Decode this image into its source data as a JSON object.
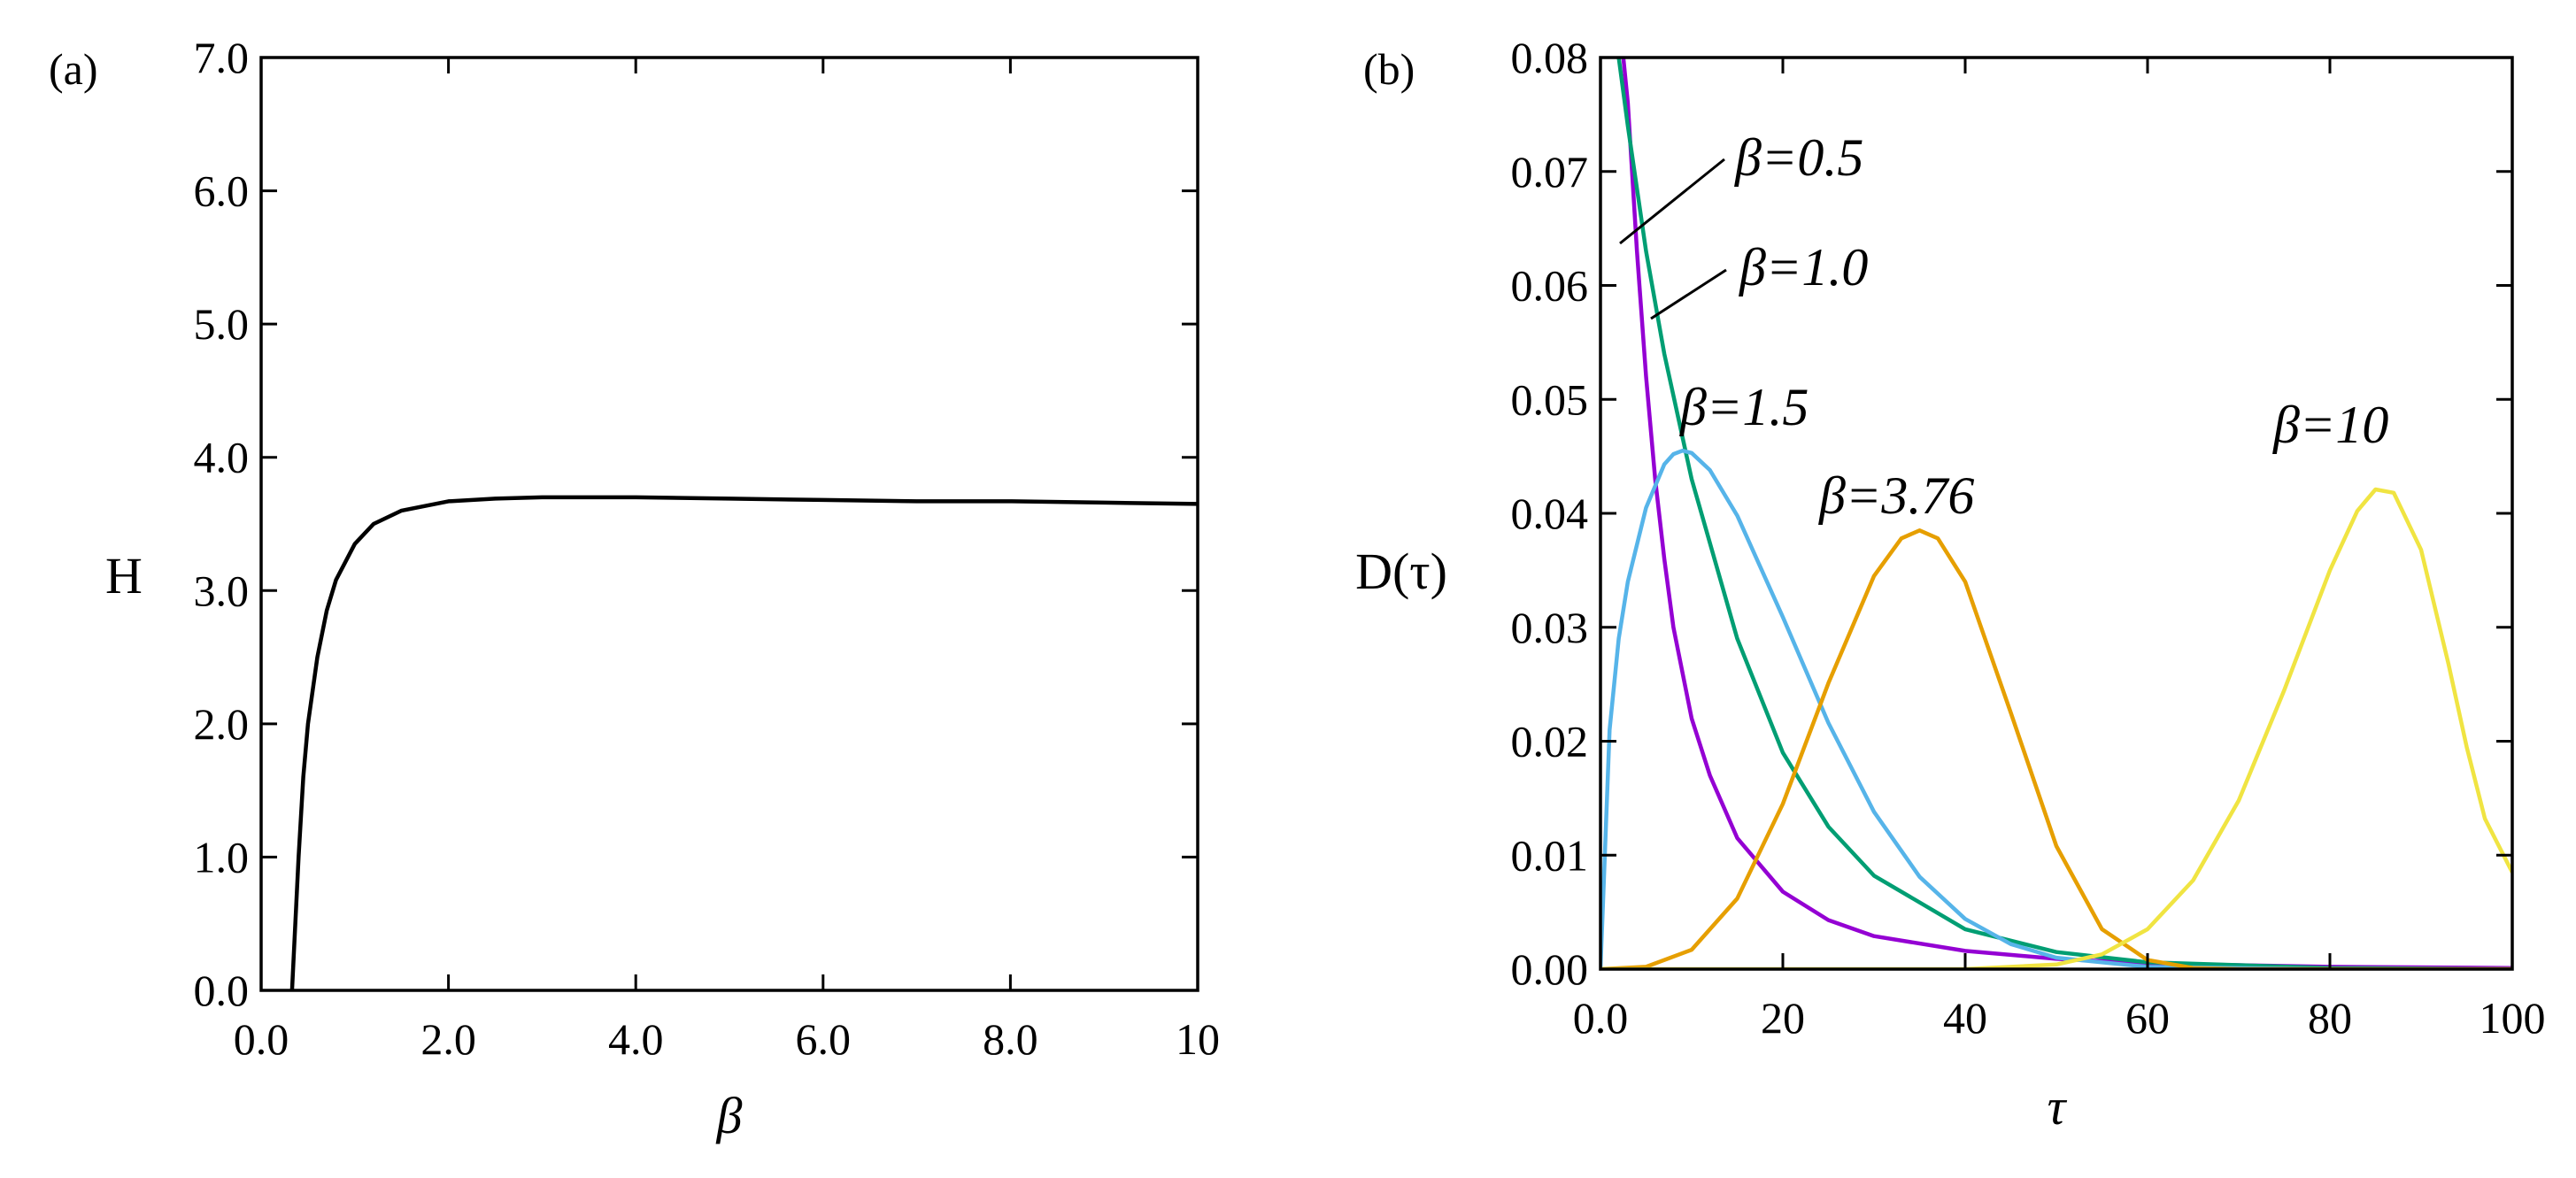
{
  "chart_data": [
    {
      "panel": "(a)",
      "type": "line",
      "xlabel": "β",
      "ylabel": "H",
      "xlim": [
        0,
        10
      ],
      "ylim": [
        0,
        7
      ],
      "x_ticks": [
        "0.0",
        "2.0",
        "4.0",
        "6.0",
        "8.0",
        "10"
      ],
      "y_ticks": [
        "0.0",
        "1.0",
        "2.0",
        "3.0",
        "4.0",
        "5.0",
        "6.0",
        "7.0"
      ],
      "grid": false,
      "series": [
        {
          "color": "#000000",
          "x": [
            0.33,
            0.4,
            0.45,
            0.5,
            0.6,
            0.7,
            0.8,
            1.0,
            1.2,
            1.5,
            2.0,
            2.5,
            3.0,
            3.5,
            4.0,
            5.0,
            6.0,
            7.0,
            8.0,
            9.0,
            10.0
          ],
          "y": [
            0.0,
            1.0,
            1.6,
            2.0,
            2.5,
            2.85,
            3.08,
            3.35,
            3.5,
            3.6,
            3.67,
            3.69,
            3.7,
            3.7,
            3.7,
            3.69,
            3.68,
            3.67,
            3.67,
            3.66,
            3.65
          ]
        }
      ]
    },
    {
      "panel": "(b)",
      "type": "line",
      "xlabel": "τ",
      "ylabel": "D(τ)",
      "xlim": [
        0,
        100
      ],
      "ylim": [
        0,
        0.08
      ],
      "x_ticks": [
        "0.0",
        "20",
        "40",
        "60",
        "80",
        "100"
      ],
      "y_ticks": [
        "0.00",
        "0.01",
        "0.02",
        "0.03",
        "0.04",
        "0.05",
        "0.06",
        "0.07",
        "0.08"
      ],
      "grid": false,
      "series": [
        {
          "label": "β=0.5",
          "color": "#9400D3",
          "x": [
            2.5,
            3,
            4,
            5,
            6,
            7,
            8,
            10,
            12,
            15,
            20,
            25,
            30,
            40,
            50,
            60,
            80,
            100
          ],
          "y": [
            0.08,
            0.076,
            0.063,
            0.052,
            0.043,
            0.036,
            0.03,
            0.022,
            0.017,
            0.0115,
            0.0068,
            0.0043,
            0.0029,
            0.0016,
            0.0009,
            0.0005,
            0.0002,
            0.0001
          ]
        },
        {
          "label": "β=1.0",
          "color": "#009E73",
          "x": [
            2,
            3,
            5,
            7,
            10,
            15,
            20,
            25,
            30,
            40,
            50,
            60,
            80,
            100
          ],
          "y": [
            0.08,
            0.074,
            0.063,
            0.054,
            0.043,
            0.029,
            0.019,
            0.0125,
            0.0082,
            0.0035,
            0.0015,
            0.0006,
            0.0001,
            0.0
          ]
        },
        {
          "label": "β=1.5",
          "color": "#56B4E9",
          "x": [
            0,
            1,
            2,
            3,
            5,
            7,
            8,
            9,
            10,
            12,
            15,
            20,
            25,
            30,
            35,
            40,
            45,
            50,
            60,
            80,
            100
          ],
          "y": [
            0.0,
            0.021,
            0.029,
            0.034,
            0.0405,
            0.0443,
            0.0452,
            0.0455,
            0.0453,
            0.0438,
            0.0398,
            0.0309,
            0.0216,
            0.0138,
            0.0081,
            0.0044,
            0.0022,
            0.001,
            0.0002,
            0.0,
            0.0
          ]
        },
        {
          "label": "β=3.76",
          "color": "#E69F00",
          "x": [
            0,
            5,
            10,
            15,
            20,
            25,
            30,
            33,
            35,
            37,
            40,
            45,
            50,
            55,
            60,
            65,
            70,
            80,
            100
          ],
          "y": [
            0.0,
            0.0002,
            0.0017,
            0.0062,
            0.0145,
            0.0251,
            0.0345,
            0.0378,
            0.0385,
            0.0378,
            0.034,
            0.0225,
            0.0108,
            0.0035,
            0.0008,
            0.0001,
            0.0,
            0.0,
            0.0
          ]
        },
        {
          "label": "β=10",
          "color": "#F0E442",
          "x": [
            0,
            40,
            50,
            55,
            60,
            65,
            70,
            75,
            80,
            83,
            85,
            87,
            90,
            93,
            95,
            97,
            100
          ],
          "y": [
            0.0,
            0.0,
            0.0004,
            0.0013,
            0.0035,
            0.0078,
            0.0148,
            0.0245,
            0.035,
            0.0402,
            0.0421,
            0.0418,
            0.0368,
            0.0268,
            0.0195,
            0.0132,
            0.0085
          ]
        }
      ],
      "annotations": [
        {
          "text": "β=0.5"
        },
        {
          "text": "β=1.0"
        },
        {
          "text": "β=1.5"
        },
        {
          "text": "β=3.76"
        },
        {
          "text": "β=10"
        }
      ]
    }
  ]
}
